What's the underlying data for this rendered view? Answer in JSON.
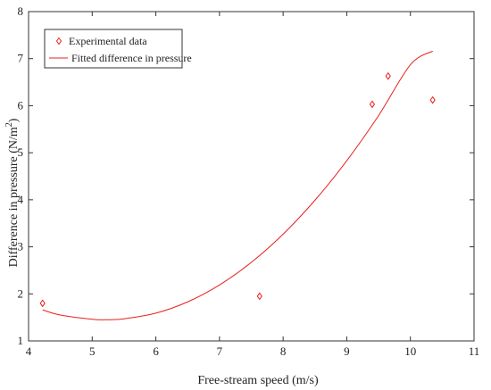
{
  "chart_data": {
    "type": "scatter",
    "title": "",
    "xlabel": "Free-stream speed (m/s)",
    "ylabel_main": "Difference in pressure (N/m",
    "ylabel_sup": "2",
    "ylabel_close": ")",
    "xlim": [
      4,
      11
    ],
    "ylim": [
      1,
      8
    ],
    "xticks": [
      4,
      5,
      6,
      7,
      8,
      9,
      10,
      11
    ],
    "yticks": [
      1,
      2,
      3,
      4,
      5,
      6,
      7,
      8
    ],
    "grid": false,
    "legend_position": "top-left",
    "series": [
      {
        "name": "Experimental data",
        "kind": "markers",
        "marker": "diamond",
        "color": "#e8201c",
        "x": [
          4.22,
          7.63,
          9.4,
          9.65,
          10.35
        ],
        "y": [
          1.8,
          1.95,
          6.03,
          6.63,
          6.12
        ]
      },
      {
        "name": "Fitted difference in pressure",
        "kind": "line",
        "color": "#e8201c",
        "x": [
          4.22,
          4.5,
          5.0,
          5.22,
          5.5,
          6.0,
          6.5,
          7.0,
          7.5,
          8.0,
          8.5,
          9.0,
          9.5,
          10.0,
          10.35
        ],
        "y": [
          1.66,
          1.55,
          1.46,
          1.45,
          1.47,
          1.59,
          1.83,
          2.19,
          2.67,
          3.27,
          3.99,
          4.83,
          5.79,
          6.87,
          7.16
        ]
      }
    ]
  }
}
